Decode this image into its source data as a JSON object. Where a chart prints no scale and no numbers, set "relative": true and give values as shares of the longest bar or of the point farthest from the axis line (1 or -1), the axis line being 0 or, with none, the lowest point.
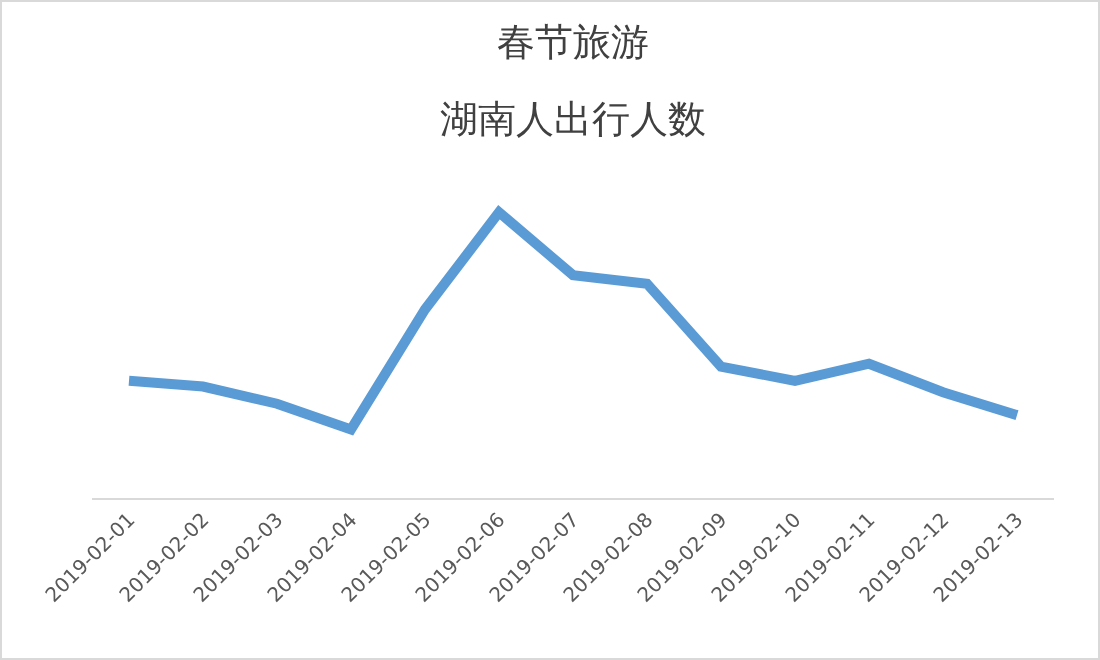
{
  "chart_data": {
    "type": "line",
    "title": "春节旅游",
    "subtitle": "湖南人出行人数",
    "relative": true,
    "categories": [
      "2019-02-01",
      "2019-02-02",
      "2019-02-03",
      "2019-02-04",
      "2019-02-05",
      "2019-02-06",
      "2019-02-07",
      "2019-02-08",
      "2019-02-09",
      "2019-02-10",
      "2019-02-11",
      "2019-02-12",
      "2019-02-13"
    ],
    "series": [
      {
        "color": "#5b9bd5",
        "values": [
          0.41,
          0.39,
          0.33,
          0.24,
          0.66,
          1,
          0.78,
          0.75,
          0.46,
          0.41,
          0.47,
          0.37,
          0.29
        ]
      }
    ],
    "marker": "none",
    "line_style": "solid"
  }
}
